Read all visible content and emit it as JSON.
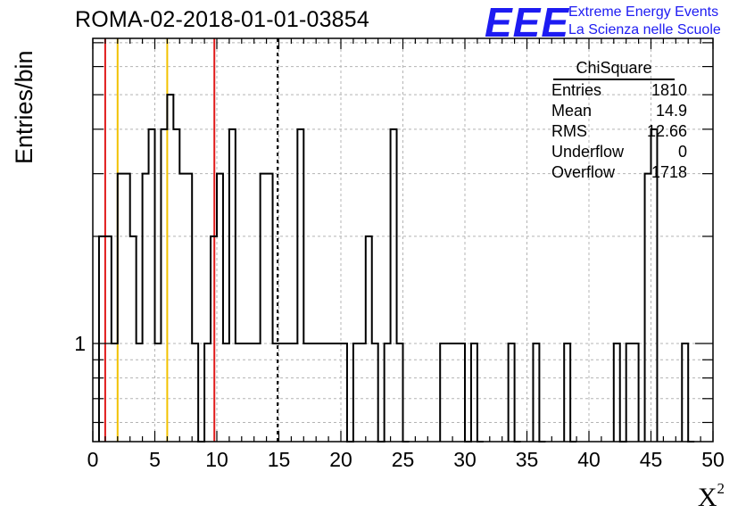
{
  "title": "ROMA-02-2018-01-01-03854",
  "logo": {
    "mark": "EEE",
    "line1": "Extreme Energy Events",
    "line2": "La Scienza nelle Scuole"
  },
  "stats": {
    "name": "ChiSquare",
    "rows": [
      {
        "label": "Entries",
        "value": "1810"
      },
      {
        "label": "Mean",
        "value": "14.9"
      },
      {
        "label": "RMS",
        "value": "12.66"
      },
      {
        "label": "Underflow",
        "value": "0"
      },
      {
        "label": "Overflow",
        "value": "1718"
      }
    ]
  },
  "chart_data": {
    "type": "histogram",
    "xlabel": "X",
    "xlabel_superscript": "2",
    "ylabel": "Entries/bin",
    "xlim": [
      0,
      50
    ],
    "ylim": [
      0.53,
      7.2
    ],
    "y_scale": "log",
    "grid": true,
    "x_ticks": [
      0,
      5,
      10,
      15,
      20,
      25,
      30,
      35,
      40,
      45,
      50
    ],
    "y_tick_labels": [
      1
    ],
    "bin_width": 0.5,
    "bin_lower_edges": [
      0.5,
      1.0,
      1.5,
      2.0,
      2.5,
      3.0,
      3.5,
      4.0,
      4.5,
      5.0,
      5.5,
      6.0,
      6.5,
      7.0,
      7.5,
      8.0,
      8.5,
      9.0,
      9.5,
      10.0,
      10.5,
      11.0,
      11.5,
      12.0,
      12.5,
      13.0,
      13.5,
      14.0,
      14.5,
      15.0,
      15.5,
      16.0,
      16.5,
      17.0,
      17.5,
      18.0,
      18.5,
      19.0,
      19.5,
      20.0,
      20.5,
      21.0,
      21.5,
      22.0,
      22.5,
      23.0,
      23.5,
      24.0,
      24.5,
      25.0,
      28.0,
      28.5,
      29.0,
      29.5,
      30.0,
      30.5,
      31.0,
      33.5,
      34.0,
      35.5,
      36.0,
      38.0,
      38.5,
      42.0,
      42.5,
      43.0,
      43.5,
      44.5,
      45.0,
      47.5,
      48.0
    ],
    "bin_counts": [
      2,
      2,
      1,
      3,
      3,
      2,
      1,
      3,
      4,
      1,
      4,
      5,
      4,
      3,
      3,
      1,
      0,
      1,
      2,
      3,
      1,
      4,
      1,
      1,
      1,
      1,
      3,
      3,
      1,
      1,
      1,
      1,
      4,
      1,
      1,
      1,
      1,
      1,
      1,
      1,
      0,
      1,
      1,
      2,
      1,
      0,
      1,
      4,
      1,
      0,
      1,
      1,
      1,
      1,
      0,
      1,
      0,
      1,
      0,
      1,
      0,
      1,
      0,
      1,
      0,
      1,
      1,
      3,
      4,
      1,
      0
    ],
    "reference_lines": [
      {
        "x": 1.0,
        "color": "#e01a1a",
        "style": "solid"
      },
      {
        "x": 9.8,
        "color": "#e01a1a",
        "style": "solid"
      },
      {
        "x": 2.0,
        "color": "#f2c200",
        "style": "solid"
      },
      {
        "x": 6.0,
        "color": "#f2c200",
        "style": "solid"
      },
      {
        "x": 14.9,
        "color": "#000000",
        "style": "dashed"
      }
    ]
  }
}
